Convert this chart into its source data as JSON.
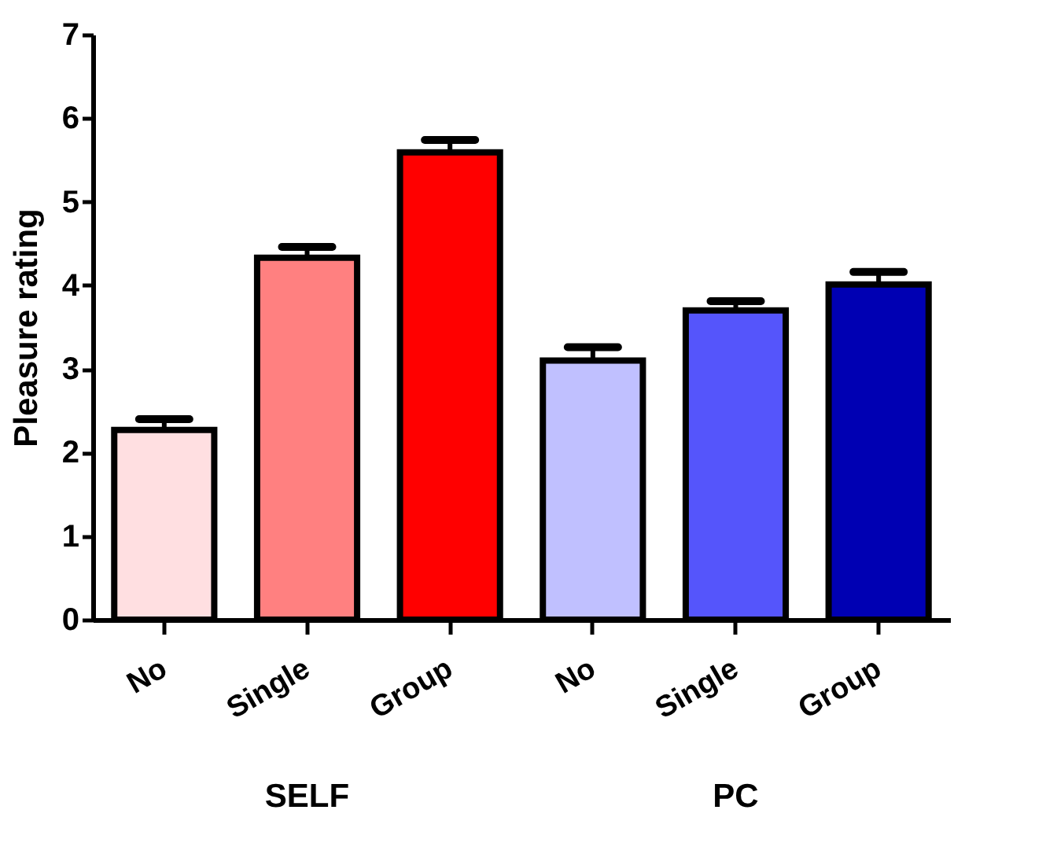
{
  "chart_data": {
    "type": "bar",
    "ylabel": "Pleasure rating",
    "categories": [
      "No",
      "Single",
      "Group",
      "No",
      "Single",
      "Group"
    ],
    "values": [
      2.27,
      4.33,
      5.59,
      3.1,
      3.7,
      4.01
    ],
    "errors": [
      [
        2.27,
        2.4
      ],
      [
        4.33,
        4.46
      ],
      [
        5.59,
        5.74
      ],
      [
        3.1,
        3.26
      ],
      [
        3.7,
        3.81
      ],
      [
        4.01,
        4.16
      ]
    ],
    "colors": [
      "#ffdfe1",
      "#ff8080",
      "#ff0000",
      "#c0c0ff",
      "#5555fb",
      "#0000b3"
    ],
    "ylim": [
      0,
      7
    ],
    "yticks": [
      0,
      1,
      2,
      3,
      4,
      5,
      6,
      7
    ],
    "grid": false,
    "annotations": [
      "SELF",
      "PC"
    ]
  }
}
